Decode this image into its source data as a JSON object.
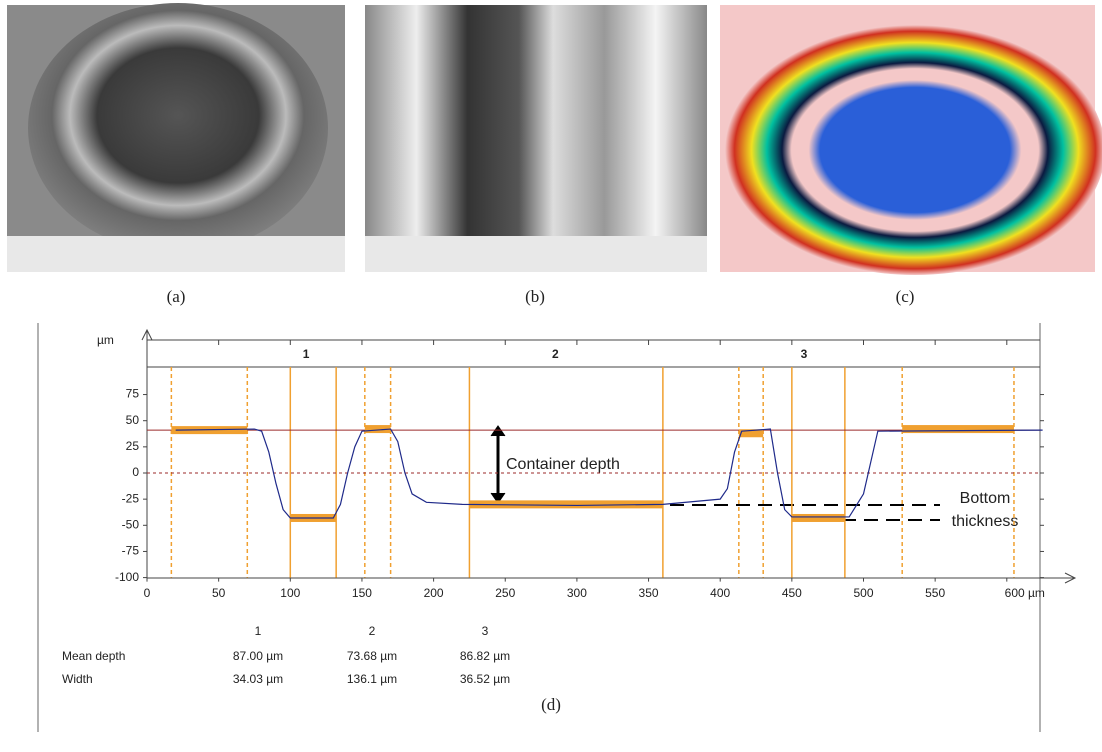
{
  "figure": {
    "panels": [
      "(a)",
      "(b)",
      "(c)"
    ],
    "chart_caption": "(d)"
  },
  "chart_data": {
    "type": "line",
    "y_unit_label": "µm",
    "xlim": [
      0,
      625
    ],
    "ylim": [
      -100,
      100
    ],
    "xticks": [
      0,
      50,
      100,
      150,
      200,
      250,
      300,
      350,
      400,
      450,
      500,
      550,
      {
        "value": 600,
        "label": "600 µm"
      }
    ],
    "yticks": [
      -100,
      -75,
      -50,
      -25,
      0,
      25,
      50,
      75
    ],
    "series": [
      {
        "color": "#1f2a8a",
        "x": [
          20,
          75,
          80,
          85,
          90,
          95,
          100,
          130,
          135,
          140,
          145,
          150,
          170,
          175,
          180,
          185,
          195,
          220,
          300,
          360,
          400,
          405,
          410,
          415,
          435,
          440,
          445,
          450,
          490,
          500,
          505,
          510,
          625
        ],
        "values": [
          41,
          42,
          40,
          20,
          -10,
          -35,
          -43,
          -43,
          -30,
          0,
          25,
          40,
          42,
          30,
          0,
          -20,
          -28,
          -30,
          -31,
          -30,
          -25,
          -15,
          20,
          40,
          42,
          0,
          -35,
          -42,
          -42,
          -20,
          10,
          40,
          41
        ]
      }
    ],
    "reference_lines": [
      {
        "y": 41,
        "style": "solid",
        "color": "#9b2a2a"
      },
      {
        "y": 0,
        "style": "dashed",
        "color": "#9b2a2a"
      }
    ],
    "segments": [
      {
        "x0": 17,
        "x1": 70,
        "y": 41,
        "style": "dashed"
      },
      {
        "x0": 100,
        "x1": 132,
        "y": -43,
        "style": "solid"
      },
      {
        "x0": 152,
        "x1": 170,
        "y": 42,
        "style": "dashed"
      },
      {
        "x0": 225,
        "x1": 360,
        "y": -30,
        "style": "solid"
      },
      {
        "x0": 413,
        "x1": 430,
        "y": 38,
        "style": "dashed"
      },
      {
        "x0": 450,
        "x1": 487,
        "y": -43,
        "style": "solid"
      },
      {
        "x0": 527,
        "x1": 605,
        "y": 42,
        "style": "dashed"
      }
    ],
    "segment_color": "#f0a030",
    "regions": [
      {
        "label": "1",
        "range": [
          90,
          132
        ]
      },
      {
        "label": "2",
        "range": [
          225,
          345
        ]
      },
      {
        "label": "3",
        "range": [
          430,
          487
        ]
      }
    ],
    "annotations": [
      "Container depth",
      "Bottom",
      "thickness"
    ]
  },
  "table": {
    "header": [
      "1",
      "2",
      "3"
    ],
    "rows": [
      [
        "Mean depth",
        "87.00 µm",
        "73.68 µm",
        "86.82 µm"
      ],
      [
        "Width",
        "34.03 µm",
        "136.1 µm",
        "36.52 µm"
      ]
    ]
  }
}
